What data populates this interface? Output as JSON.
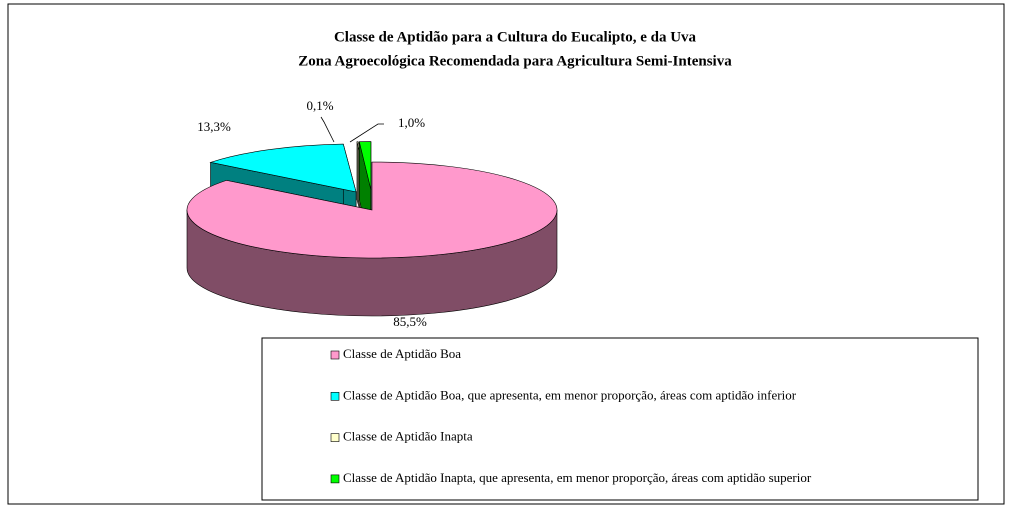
{
  "chart_data": {
    "type": "pie3d",
    "title": "Classe de Aptidão para a Cultura do Eucalipto, e da Uva",
    "subtitle": "Zona Agroecológica Recomendada para Agricultura Semi-Intensiva",
    "categories": [
      "Classe de Aptidão Boa",
      "Classe de Aptidão Boa, que apresenta, em menor proporção, áreas com aptidão inferior",
      "Classe de Aptidão Inapta",
      "Classe de Aptidão Inapta, que apresenta, em menor proporção, áreas com aptidão superior"
    ],
    "values": [
      85.5,
      13.3,
      0.1,
      1.0
    ],
    "value_labels": [
      "85,5%",
      "13,3%",
      "0,1%",
      "1,0%"
    ],
    "colors": [
      "#ff99cc",
      "#00ffff",
      "#ffffcc",
      "#00ff00"
    ],
    "legend": "bottom"
  }
}
